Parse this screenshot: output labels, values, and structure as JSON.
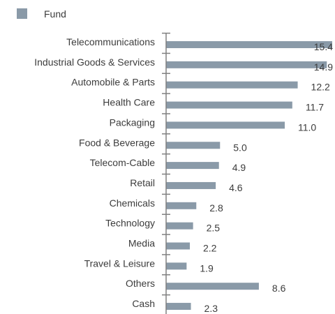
{
  "chart_data": {
    "type": "bar",
    "orientation": "horizontal",
    "categories": [
      "Telecommunications",
      "Industrial Goods & Services",
      "Automobile & Parts",
      "Health Care",
      "Packaging",
      "Food & Beverage",
      "Telecom-Cable",
      "Retail",
      "Chemicals",
      "Technology",
      "Media",
      "Travel & Leisure",
      "Others",
      "Cash"
    ],
    "series": [
      {
        "name": "Fund",
        "values": [
          15.4,
          14.9,
          12.2,
          11.7,
          11.0,
          5.0,
          4.9,
          4.6,
          2.8,
          2.5,
          2.2,
          1.9,
          8.6,
          2.3
        ],
        "labels": [
          "15.4",
          "14.9",
          "12.2",
          "11.7",
          "11.0",
          "5.0",
          "4.9",
          "4.6",
          "2.8",
          "2.5",
          "2.2",
          "1.9",
          "8.6",
          "2.3"
        ]
      }
    ],
    "xlim": [
      0,
      15.4
    ],
    "grid": false,
    "legend": "top-left",
    "colors": {
      "bar": "#8a9aa8",
      "axis": "#808080",
      "text": "#3c3c3c"
    }
  }
}
